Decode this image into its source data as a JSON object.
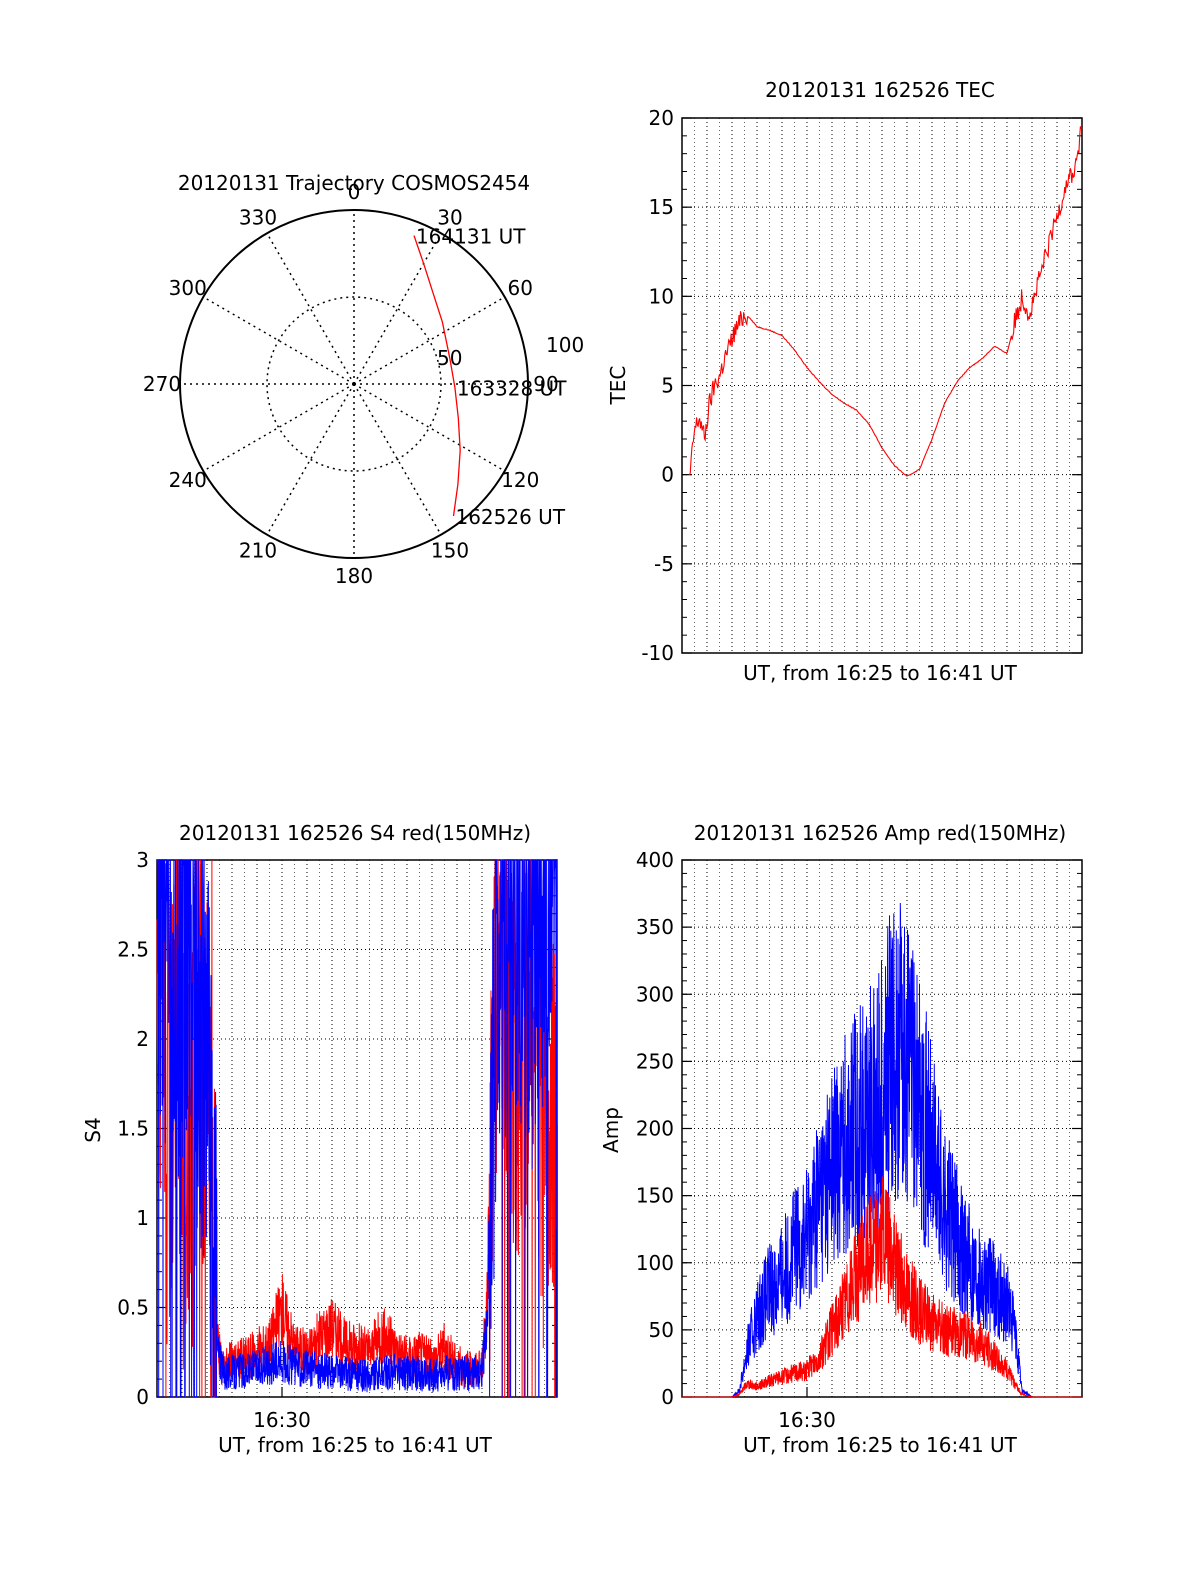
{
  "colors": {
    "red": "#ff0000",
    "blue": "#0000ff",
    "axis": "#000000",
    "grid": "#000000"
  },
  "chart_data": [
    {
      "id": "trajectory",
      "type": "polar",
      "title": "20120131 Trajectory COSMOS2454",
      "azimuth_labels": [
        "0",
        "30",
        "60",
        "90",
        "120",
        "150",
        "180",
        "210",
        "240",
        "270",
        "300",
        "330"
      ],
      "radial_labels": [
        "50",
        "100"
      ],
      "radial_label_values": [
        50,
        100
      ],
      "grid": true,
      "series": [
        {
          "color": "#ff0000",
          "points": [
            {
              "az": 22,
              "r": 92
            },
            {
              "az": 30,
              "r": 80
            },
            {
              "az": 40,
              "r": 70
            },
            {
              "az": 55,
              "r": 62
            },
            {
              "az": 75,
              "r": 57
            },
            {
              "az": 92,
              "r": 58
            },
            {
              "az": 108,
              "r": 63
            },
            {
              "az": 122,
              "r": 72
            },
            {
              "az": 134,
              "r": 83
            },
            {
              "az": 143,
              "r": 95
            }
          ]
        }
      ],
      "annotations": [
        {
          "text": "164131 UT",
          "az": 22,
          "r": 92
        },
        {
          "text": "163328 UT",
          "az": 92,
          "r": 58
        },
        {
          "text": "162526 UT",
          "az": 143,
          "r": 95
        }
      ]
    },
    {
      "id": "tec",
      "type": "line",
      "title": "20120131 162526 TEC",
      "xlabel": "UT, from 16:25 to 16:41 UT",
      "ylabel": "TEC",
      "xlim": [
        0,
        16
      ],
      "ylim": [
        -10,
        20
      ],
      "yticks": [
        -10,
        -5,
        0,
        5,
        10,
        15,
        20
      ],
      "grid": true,
      "series": [
        {
          "color": "#ff0000",
          "x": [
            0.3,
            0.5,
            0.7,
            0.9,
            1.1,
            1.3,
            1.5,
            1.7,
            1.9,
            2.1,
            2.3,
            2.5,
            2.7,
            3.0,
            3.5,
            4.0,
            4.5,
            5.0,
            5.5,
            6.0,
            6.5,
            7.0,
            7.5,
            8.0,
            8.5,
            9.0,
            9.5,
            10.0,
            10.5,
            11.0,
            11.5,
            12.0,
            12.5,
            13.0,
            13.3,
            13.6,
            13.9,
            14.2,
            14.5,
            14.8,
            15.1,
            15.4,
            15.7,
            16.0
          ],
          "y": [
            -0.3,
            2.5,
            3.2,
            2.0,
            4.0,
            5.0,
            5.5,
            6.5,
            7.2,
            8.0,
            8.5,
            9.0,
            8.8,
            8.3,
            8.1,
            7.8,
            7.0,
            6.0,
            5.2,
            4.5,
            4.0,
            3.6,
            2.8,
            1.5,
            0.5,
            -0.1,
            0.3,
            2.0,
            4.0,
            5.2,
            6.0,
            6.5,
            7.2,
            6.8,
            8.5,
            10.0,
            9.0,
            10.5,
            12.0,
            13.5,
            15.0,
            16.5,
            17.0,
            19.5
          ]
        }
      ]
    },
    {
      "id": "s4",
      "type": "line",
      "title": "20120131 162526 S4 red(150MHz)",
      "xlabel": "UT, from 16:25 to 16:41 UT",
      "ylabel": "S4",
      "xlim": [
        0,
        16
      ],
      "ylim": [
        0,
        3
      ],
      "yticks": [
        "0",
        "0.5",
        "1",
        "1.5",
        "2",
        "2.5",
        "3"
      ],
      "ytick_values": [
        0,
        0.5,
        1,
        1.5,
        2,
        2.5,
        3
      ],
      "xticks": [
        "16:30"
      ],
      "xtick_values": [
        5
      ],
      "grid": true,
      "series": [
        {
          "name": "red",
          "color": "#ff0000",
          "x": [
            0,
            0.4,
            0.8,
            1.2,
            1.6,
            2.0,
            2.2,
            2.4,
            2.6,
            2.8,
            3.0,
            3.5,
            4.0,
            4.5,
            5.0,
            5.5,
            6.0,
            6.5,
            7.0,
            7.5,
            8.0,
            8.5,
            9.0,
            9.5,
            10.0,
            10.5,
            11.0,
            11.5,
            12.0,
            12.5,
            13.0,
            13.2,
            13.4,
            13.6,
            13.8,
            14.0,
            14.5,
            15.0,
            15.5,
            16.0
          ],
          "y": [
            2.8,
            1.5,
            2.2,
            0.9,
            2.0,
            1.7,
            0.8,
            0.3,
            0.16,
            0.18,
            0.2,
            0.22,
            0.25,
            0.3,
            0.5,
            0.28,
            0.25,
            0.33,
            0.4,
            0.3,
            0.28,
            0.25,
            0.35,
            0.28,
            0.22,
            0.25,
            0.2,
            0.28,
            0.18,
            0.15,
            0.16,
            0.5,
            1.5,
            2.5,
            2.8,
            2.2,
            1.8,
            2.6,
            1.4,
            2.0
          ]
        },
        {
          "name": "blue",
          "color": "#0000ff",
          "x": [
            0,
            0.4,
            0.8,
            1.2,
            1.6,
            2.0,
            2.2,
            2.4,
            2.6,
            2.8,
            3.0,
            3.5,
            4.0,
            4.5,
            5.0,
            5.5,
            6.0,
            6.5,
            7.0,
            7.5,
            8.0,
            8.5,
            9.0,
            9.5,
            10.0,
            10.5,
            11.0,
            11.5,
            12.0,
            12.5,
            13.0,
            13.2,
            13.4,
            13.6,
            13.8,
            14.0,
            14.5,
            15.0,
            15.5,
            16.0
          ],
          "y": [
            2.9,
            2.6,
            2.4,
            2.7,
            2.2,
            1.9,
            1.0,
            0.3,
            0.15,
            0.14,
            0.14,
            0.15,
            0.16,
            0.18,
            0.2,
            0.17,
            0.16,
            0.15,
            0.14,
            0.13,
            0.12,
            0.12,
            0.13,
            0.14,
            0.13,
            0.13,
            0.12,
            0.14,
            0.13,
            0.13,
            0.15,
            0.4,
            1.5,
            2.5,
            2.9,
            2.6,
            2.8,
            2.4,
            2.9,
            2.7
          ]
        }
      ]
    },
    {
      "id": "amp",
      "type": "line",
      "title": "20120131 162526 Amp red(150MHz)",
      "xlabel": "UT, from 16:25 to 16:41 UT",
      "ylabel": "Amp",
      "xlim": [
        0,
        16
      ],
      "ylim": [
        0,
        400
      ],
      "yticks": [
        0,
        50,
        100,
        150,
        200,
        250,
        300,
        350,
        400
      ],
      "xticks": [
        "16:30"
      ],
      "xtick_values": [
        5
      ],
      "grid": true,
      "series": [
        {
          "name": "blue",
          "color": "#0000ff",
          "x": [
            0,
            1,
            2,
            2.3,
            2.6,
            3.0,
            3.5,
            4.0,
            4.5,
            5.0,
            5.5,
            6.0,
            6.5,
            7.0,
            7.5,
            8.0,
            8.5,
            9.0,
            9.5,
            10.0,
            10.5,
            11.0,
            11.5,
            12.0,
            12.5,
            13.0,
            13.3,
            13.6,
            14.0,
            15.0,
            16.0
          ],
          "y": [
            0,
            0,
            0,
            5,
            35,
            60,
            80,
            90,
            110,
            120,
            150,
            170,
            190,
            200,
            210,
            230,
            260,
            250,
            220,
            180,
            140,
            120,
            100,
            90,
            80,
            70,
            50,
            5,
            0,
            0,
            0
          ]
        },
        {
          "name": "red",
          "color": "#ff0000",
          "x": [
            0,
            1,
            2,
            2.3,
            2.6,
            3.0,
            3.5,
            4.0,
            4.5,
            5.0,
            5.5,
            6.0,
            6.5,
            7.0,
            7.5,
            8.0,
            8.5,
            9.0,
            9.5,
            10.0,
            10.5,
            11.0,
            11.5,
            12.0,
            12.5,
            13.0,
            13.3,
            13.6,
            14.0,
            15.0,
            16.0
          ],
          "y": [
            0,
            0,
            0,
            2,
            10,
            8,
            12,
            15,
            18,
            20,
            30,
            50,
            70,
            90,
            110,
            120,
            100,
            80,
            65,
            55,
            50,
            48,
            45,
            40,
            30,
            20,
            10,
            2,
            0,
            0,
            0
          ]
        }
      ]
    }
  ]
}
